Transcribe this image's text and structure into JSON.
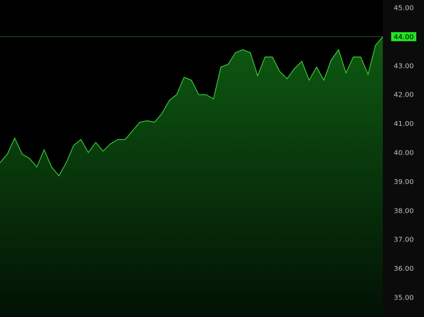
{
  "colors": {
    "background": "#000000",
    "axis_background": "#0b0b0b",
    "line": "#3de63d",
    "fill_top": "#0e5a12",
    "fill_bottom": "#021104",
    "price_label_bg": "#22e322",
    "tick_text": "#bfbfbf"
  },
  "chart_data": {
    "type": "area",
    "title": "",
    "xlabel": "",
    "ylabel": "",
    "ylim": [
      34.5,
      45.3
    ],
    "y_ticks": [
      "45.00",
      "44.00",
      "43.00",
      "42.00",
      "41.00",
      "40.00",
      "39.00",
      "38.00",
      "37.00",
      "36.00",
      "35.00"
    ],
    "last_price_label": "44.00",
    "series": [
      {
        "values": [
          39.65,
          39.95,
          40.5,
          39.95,
          39.8,
          39.5,
          40.1,
          39.5,
          39.2,
          39.65,
          40.25,
          40.45,
          40.0,
          40.35,
          40.05,
          40.3,
          40.45,
          40.45,
          40.75,
          41.05,
          41.1,
          41.05,
          41.35,
          41.8,
          42.0,
          42.6,
          42.5,
          42.0,
          42.0,
          41.85,
          42.95,
          43.05,
          43.45,
          43.55,
          43.45,
          42.65,
          43.3,
          43.3,
          42.8,
          42.55,
          42.9,
          43.15,
          42.5,
          42.95,
          42.5,
          43.2,
          43.55,
          42.75,
          43.3,
          43.3,
          42.7,
          43.7,
          44.0
        ]
      }
    ]
  }
}
